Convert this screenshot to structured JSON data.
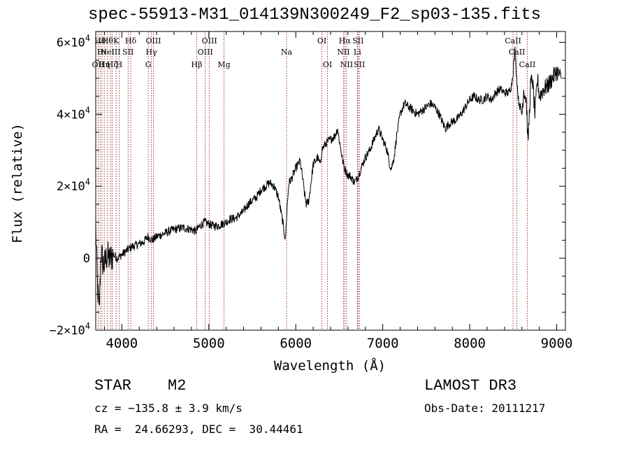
{
  "chart_data": {
    "type": "line",
    "title": "spec-55913-M31_014139N300249_F2_sp03-135.fits",
    "xlabel": "Wavelength (Å)",
    "ylabel": "Flux (relative)",
    "xlim": [
      3700,
      9100
    ],
    "ylim": [
      -20000,
      63000
    ],
    "xticks": [
      4000,
      5000,
      6000,
      7000,
      8000,
      9000
    ],
    "xtick_labels": [
      "4000",
      "5000",
      "6000",
      "7000",
      "8000",
      "9000"
    ],
    "yticks": [
      -20000,
      0,
      20000,
      40000,
      60000
    ],
    "ytick_labels": [
      {
        "mant": "−2×10",
        "exp": "4"
      },
      {
        "mant": "0",
        "exp": ""
      },
      {
        "mant": "2×10",
        "exp": "4"
      },
      {
        "mant": "4×10",
        "exp": "4"
      },
      {
        "mant": "6×10",
        "exp": "4"
      }
    ],
    "series": [
      {
        "name": "flux",
        "x": [
          3700,
          3720,
          3740,
          3760,
          3780,
          3800,
          3830,
          3860,
          3900,
          3950,
          4000,
          4050,
          4100,
          4150,
          4200,
          4250,
          4300,
          4350,
          4400,
          4500,
          4600,
          4700,
          4800,
          4850,
          4900,
          4950,
          5000,
          5050,
          5100,
          5150,
          5200,
          5250,
          5300,
          5350,
          5400,
          5450,
          5500,
          5550,
          5600,
          5650,
          5700,
          5750,
          5800,
          5850,
          5880,
          5900,
          5920,
          5950,
          6000,
          6050,
          6080,
          6100,
          6120,
          6150,
          6200,
          6250,
          6280,
          6300,
          6320,
          6350,
          6400,
          6450,
          6480,
          6500,
          6520,
          6540,
          6560,
          6580,
          6600,
          6620,
          6650,
          6680,
          6700,
          6720,
          6750,
          6800,
          6850,
          6900,
          6950,
          7000,
          7050,
          7080,
          7100,
          7130,
          7160,
          7200,
          7250,
          7300,
          7350,
          7400,
          7450,
          7500,
          7550,
          7600,
          7650,
          7700,
          7720,
          7750,
          7800,
          7850,
          7900,
          7950,
          8000,
          8050,
          8100,
          8150,
          8200,
          8250,
          8300,
          8350,
          8400,
          8450,
          8480,
          8500,
          8520,
          8540,
          8560,
          8600,
          8620,
          8650,
          8670,
          8700,
          8720,
          8750,
          8780,
          8800,
          8850,
          8900,
          8950,
          9000,
          9050
        ],
        "y": [
          9000,
          -8000,
          -15000,
          2000,
          -1000,
          -2000,
          1000,
          -500,
          1000,
          0,
          1000,
          2000,
          3000,
          3500,
          4000,
          4500,
          6000,
          5000,
          6000,
          7000,
          8000,
          8500,
          8000,
          7500,
          9000,
          10000,
          9500,
          9000,
          9000,
          9500,
          10000,
          11000,
          11000,
          12000,
          13000,
          15000,
          16000,
          17000,
          19000,
          20000,
          21000,
          20000,
          17000,
          10000,
          5000,
          14000,
          21000,
          22000,
          25000,
          27000,
          22000,
          18000,
          15000,
          16000,
          26000,
          28000,
          26000,
          30000,
          31000,
          32000,
          33000,
          34000,
          36000,
          33000,
          30000,
          27000,
          25000,
          24000,
          23000,
          23000,
          22000,
          21000,
          22000,
          23000,
          25000,
          28000,
          30000,
          33000,
          36000,
          33000,
          30000,
          26000,
          25000,
          28000,
          34000,
          40000,
          43000,
          42000,
          41000,
          40000,
          41000,
          42000,
          43000,
          42000,
          40000,
          37000,
          36000,
          37000,
          38000,
          38500,
          40000,
          42000,
          44000,
          45000,
          44000,
          44000,
          45000,
          44000,
          46000,
          47000,
          46000,
          46000,
          48000,
          52000,
          58000,
          50000,
          44000,
          40000,
          47000,
          44000,
          32000,
          48000,
          50000,
          40000,
          50000,
          45000,
          47000,
          48000,
          50000,
          52000,
          50000
        ]
      }
    ],
    "lines": [
      {
        "w": 3727,
        "label": "OII",
        "row": 3
      },
      {
        "w": 3750,
        "label": "Hθ",
        "row": 1
      },
      {
        "w": 3771,
        "label": "Hι",
        "row": 2
      },
      {
        "w": 3798,
        "label": "Hη",
        "row": 3
      },
      {
        "w": 3835,
        "label": "Hθ",
        "row": 1
      },
      {
        "w": 3869,
        "label": "NeIII",
        "row": 2
      },
      {
        "w": 3889,
        "label": "Hζ",
        "row": 3
      },
      {
        "w": 3934,
        "label": "K",
        "row": 1
      },
      {
        "w": 3969,
        "label": "H",
        "row": 3
      },
      {
        "w": 4072,
        "label": "SII",
        "row": 2
      },
      {
        "w": 4102,
        "label": "Hδ",
        "row": 1
      },
      {
        "w": 4304,
        "label": "G",
        "row": 3
      },
      {
        "w": 4340,
        "label": "Hγ",
        "row": 2
      },
      {
        "w": 4363,
        "label": "OIII",
        "row": 1
      },
      {
        "w": 4861,
        "label": "Hβ",
        "row": 3
      },
      {
        "w": 4959,
        "label": "OIII",
        "row": 2
      },
      {
        "w": 5007,
        "label": "OIII",
        "row": 1
      },
      {
        "w": 5175,
        "label": "Mg",
        "row": 3
      },
      {
        "w": 5894,
        "label": "Na",
        "row": 2
      },
      {
        "w": 6300,
        "label": "OI",
        "row": 1
      },
      {
        "w": 6364,
        "label": "OI",
        "row": 3
      },
      {
        "w": 6548,
        "label": "NII",
        "row": 2
      },
      {
        "w": 6563,
        "label": "Hα",
        "row": 1
      },
      {
        "w": 6584,
        "label": "NII",
        "row": 3
      },
      {
        "w": 6708,
        "label": "Li",
        "row": 2
      },
      {
        "w": 6716,
        "label": "SII",
        "row": 1
      },
      {
        "w": 6731,
        "label": "SII",
        "row": 3
      },
      {
        "w": 8498,
        "label": "CaII",
        "row": 1
      },
      {
        "w": 8542,
        "label": "CaII",
        "row": 2
      },
      {
        "w": 8662,
        "label": "CaII",
        "row": 3
      }
    ]
  },
  "info": {
    "class": "STAR",
    "subclass": "M2",
    "survey": "LAMOST DR3",
    "cz": "cz = −135.8 ± 3.9 km/s",
    "obs_date": "Obs-Date: 20111217",
    "ra_dec": "RA =  24.66293, DEC =  30.44461"
  },
  "colors": {
    "line": "#000000",
    "marker": "#8b0000"
  }
}
